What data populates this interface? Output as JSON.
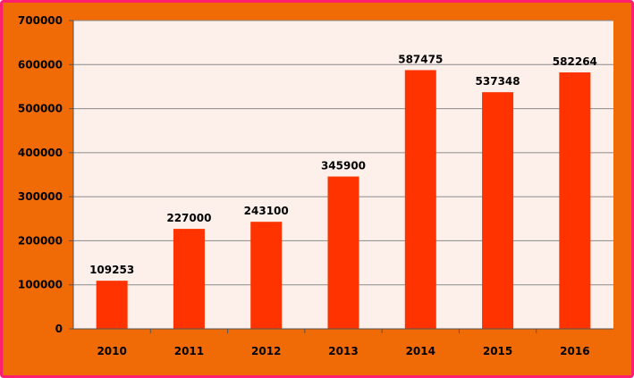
{
  "chart_data": {
    "type": "bar",
    "categories": [
      "2010",
      "2011",
      "2012",
      "2013",
      "2014",
      "2015",
      "2016"
    ],
    "values": [
      109253,
      227000,
      243100,
      345900,
      587475,
      537348,
      582264
    ],
    "data_labels": [
      "109253",
      "227000",
      "243100",
      "345900",
      "587475",
      "537348",
      "582264"
    ],
    "y_ticks": [
      "0",
      "100000",
      "200000",
      "300000",
      "400000",
      "500000",
      "600000",
      "700000"
    ],
    "ylim": [
      0,
      700000
    ],
    "grid": true,
    "legend": "none",
    "colors": {
      "frame": "#f06a06",
      "border": "#ff1f6e",
      "plot_background": "#fdf0ea",
      "bar": "#ff3300",
      "gridline": "#8a8a8a"
    }
  }
}
